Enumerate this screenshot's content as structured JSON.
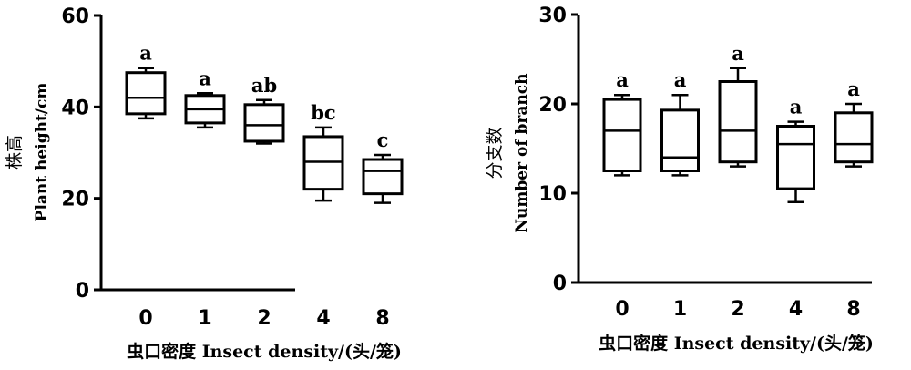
{
  "chart_data": [
    {
      "type": "boxplot",
      "ylabel_cn": "株高",
      "ylabel": "Plant height/cm",
      "xlabel": "虫口密度 Insect density/(头/笼)",
      "categories": [
        "0",
        "1",
        "2",
        "4",
        "8"
      ],
      "ylim": [
        0,
        60
      ],
      "yticks": [
        0,
        20,
        40,
        60
      ],
      "boxes": [
        {
          "min": 37.5,
          "q1": 38.5,
          "median": 42,
          "q3": 47.5,
          "max": 48.5
        },
        {
          "min": 35.5,
          "q1": 36.5,
          "median": 39.5,
          "q3": 42.5,
          "max": 43
        },
        {
          "min": 32,
          "q1": 32.5,
          "median": 36,
          "q3": 40.5,
          "max": 41.5
        },
        {
          "min": 19.5,
          "q1": 22,
          "median": 28,
          "q3": 33.5,
          "max": 35.5
        },
        {
          "min": 19,
          "q1": 21,
          "median": 26,
          "q3": 28.5,
          "max": 29.5
        }
      ],
      "significance": [
        "a",
        "a",
        "ab",
        "bc",
        "c"
      ]
    },
    {
      "type": "boxplot",
      "ylabel_cn": "分支数",
      "ylabel": "Number of branch",
      "xlabel": "虫口密度 Insect density/(头/笼)",
      "categories": [
        "0",
        "1",
        "2",
        "4",
        "8"
      ],
      "ylim": [
        0,
        30
      ],
      "yticks": [
        0,
        10,
        20,
        30
      ],
      "boxes": [
        {
          "min": 12,
          "q1": 12.5,
          "median": 17,
          "q3": 20.5,
          "max": 21
        },
        {
          "min": 12,
          "q1": 12.5,
          "median": 14,
          "q3": 19.3,
          "max": 21
        },
        {
          "min": 13,
          "q1": 13.5,
          "median": 17,
          "q3": 22.5,
          "max": 24
        },
        {
          "min": 9,
          "q1": 10.5,
          "median": 15.5,
          "q3": 17.5,
          "max": 18
        },
        {
          "min": 13,
          "q1": 13.5,
          "median": 15.5,
          "q3": 19,
          "max": 20
        }
      ],
      "significance": [
        "a",
        "a",
        "a",
        "a",
        "a"
      ]
    }
  ]
}
